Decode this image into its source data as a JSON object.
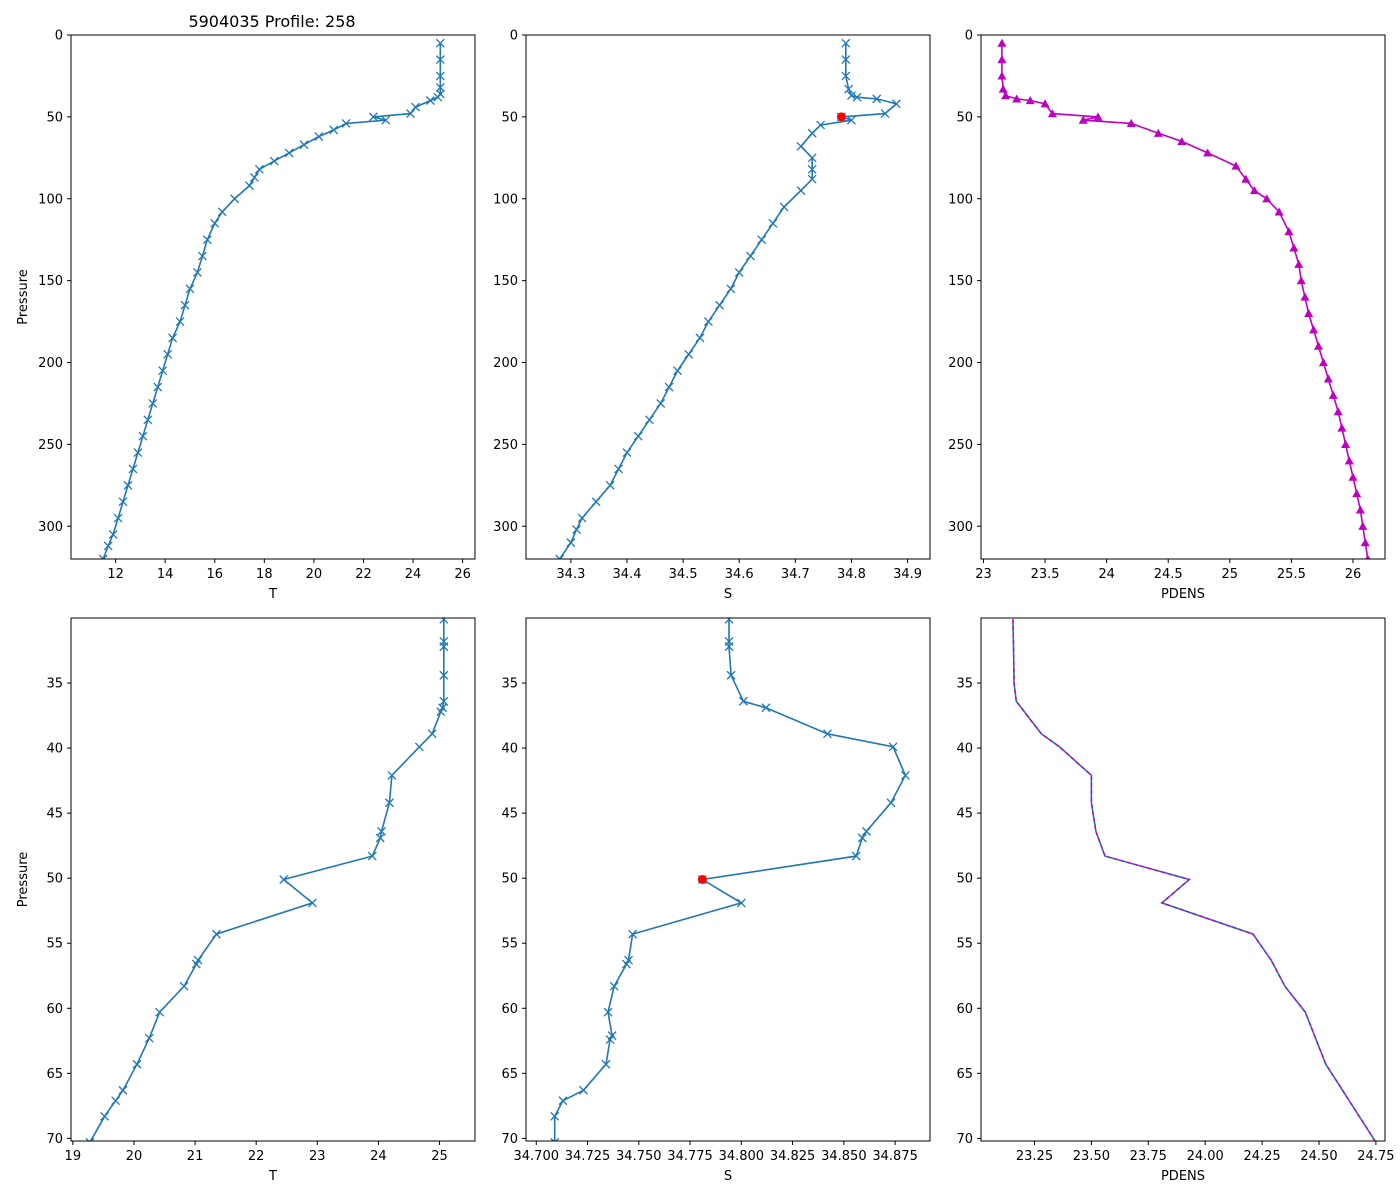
{
  "figure_title": "5904035 Profile: 258",
  "colors": {
    "line": "#1f77b4",
    "pdens": "#c000c0",
    "highlight": "#ff0000"
  },
  "chart_data": [
    {
      "id": "top-T",
      "type": "line",
      "xlabel": "T",
      "ylabel": "Pressure",
      "xlim": [
        10.2,
        26.5
      ],
      "ylim": [
        320,
        0
      ],
      "xticks": [
        12,
        14,
        16,
        18,
        20,
        22,
        24,
        26
      ],
      "yticks": [
        0,
        50,
        100,
        150,
        200,
        250,
        300
      ],
      "marker": "x",
      "color": "#1f77b4",
      "series": [
        {
          "name": "T",
          "x": [
            25.1,
            25.1,
            25.1,
            25.1,
            25.1,
            25.0,
            24.7,
            24.1,
            23.9,
            22.4,
            22.9,
            21.3,
            20.8,
            20.2,
            19.6,
            19.0,
            18.4,
            17.8,
            17.6,
            17.4,
            16.8,
            16.3,
            16.0,
            15.7,
            15.5,
            15.3,
            15.0,
            14.8,
            14.6,
            14.3,
            14.1,
            13.9,
            13.7,
            13.5,
            13.3,
            13.1,
            12.9,
            12.7,
            12.5,
            12.3,
            12.1,
            11.9,
            11.7,
            11.5
          ],
          "y": [
            5,
            15,
            25,
            32,
            36,
            38,
            40,
            44,
            48,
            50,
            52,
            54,
            58,
            62,
            67,
            72,
            77,
            82,
            87,
            92,
            100,
            108,
            115,
            125,
            135,
            145,
            155,
            165,
            175,
            185,
            195,
            205,
            215,
            225,
            235,
            245,
            255,
            265,
            275,
            285,
            295,
            305,
            312,
            320
          ]
        }
      ]
    },
    {
      "id": "top-S",
      "type": "line",
      "xlabel": "S",
      "ylabel": "",
      "xlim": [
        34.22,
        34.94
      ],
      "ylim": [
        320,
        0
      ],
      "xticks": [
        34.3,
        34.4,
        34.5,
        34.6,
        34.7,
        34.8,
        34.9
      ],
      "yticks": [
        0,
        50,
        100,
        150,
        200,
        250,
        300
      ],
      "marker": "x",
      "color": "#1f77b4",
      "highlight": {
        "x": 34.782,
        "y": 50
      },
      "series": [
        {
          "name": "S",
          "x": [
            34.79,
            34.79,
            34.79,
            34.795,
            34.8,
            34.81,
            34.845,
            34.88,
            34.86,
            34.782,
            34.8,
            34.745,
            34.73,
            34.71,
            34.73,
            34.73,
            34.73,
            34.71,
            34.68,
            34.66,
            34.64,
            34.62,
            34.6,
            34.585,
            34.565,
            34.545,
            34.53,
            34.51,
            34.49,
            34.475,
            34.46,
            34.44,
            34.42,
            34.4,
            34.385,
            34.37,
            34.345,
            34.32,
            34.31,
            34.3,
            34.28
          ],
          "y": [
            5,
            15,
            25,
            33,
            37,
            38,
            39,
            42,
            48,
            50,
            52,
            55,
            60,
            68,
            75,
            82,
            88,
            95,
            105,
            115,
            125,
            135,
            145,
            155,
            165,
            175,
            185,
            195,
            205,
            215,
            225,
            235,
            245,
            255,
            265,
            275,
            285,
            295,
            302,
            310,
            320
          ]
        }
      ]
    },
    {
      "id": "top-PDENS",
      "type": "line",
      "xlabel": "PDENS",
      "ylabel": "",
      "xlim": [
        22.98,
        26.26
      ],
      "ylim": [
        320,
        0
      ],
      "xticks": [
        23.0,
        23.5,
        24.0,
        24.5,
        25.0,
        25.5,
        26.0
      ],
      "ytick_labels": [
        "0",
        "50",
        "100",
        "150",
        "200",
        "250",
        "300"
      ],
      "yticks": [
        0,
        50,
        100,
        150,
        200,
        250,
        300
      ],
      "marker": "triangle",
      "color": "#c000c0",
      "series": [
        {
          "name": "PDENS",
          "x": [
            23.15,
            23.15,
            23.15,
            23.16,
            23.18,
            23.27,
            23.38,
            23.5,
            23.56,
            23.93,
            23.81,
            24.2,
            24.42,
            24.61,
            24.82,
            25.05,
            25.13,
            25.2,
            25.3,
            25.4,
            25.48,
            25.52,
            25.56,
            25.58,
            25.61,
            25.64,
            25.68,
            25.72,
            25.76,
            25.8,
            25.84,
            25.88,
            25.91,
            25.94,
            25.97,
            26.0,
            26.03,
            26.06,
            26.08,
            26.1,
            26.12
          ],
          "y": [
            5,
            15,
            25,
            33,
            37,
            39,
            40,
            42,
            48,
            50,
            52,
            54,
            60,
            65,
            72,
            80,
            88,
            95,
            100,
            108,
            120,
            130,
            140,
            150,
            160,
            170,
            180,
            190,
            200,
            210,
            220,
            230,
            240,
            250,
            260,
            270,
            280,
            290,
            300,
            310,
            320
          ]
        }
      ]
    },
    {
      "id": "bottom-T",
      "type": "line",
      "xlabel": "T",
      "ylabel": "Pressure",
      "xlim": [
        18.97,
        25.58
      ],
      "ylim": [
        70.2,
        30.0
      ],
      "xticks": [
        19,
        20,
        21,
        22,
        23,
        24,
        25
      ],
      "yticks": [
        35,
        40,
        45,
        50,
        55,
        60,
        65,
        70
      ],
      "marker": "x",
      "color": "#1f77b4",
      "series": [
        {
          "name": "T",
          "x": [
            25.07,
            25.07,
            25.07,
            25.07,
            25.07,
            25.05,
            25.02,
            24.88,
            24.67,
            24.22,
            24.18,
            24.05,
            24.03,
            23.9,
            22.45,
            22.92,
            21.35,
            21.05,
            21.02,
            20.82,
            20.42,
            20.25,
            20.05,
            19.82,
            19.7,
            19.52,
            19.28
          ],
          "y": [
            30.1,
            31.8,
            32.2,
            34.4,
            36.4,
            36.9,
            37.2,
            38.9,
            39.9,
            42.1,
            44.2,
            46.4,
            46.9,
            48.3,
            50.1,
            51.9,
            54.3,
            56.3,
            56.6,
            58.3,
            60.3,
            62.3,
            64.3,
            66.3,
            67.1,
            68.3,
            70.3
          ]
        }
      ]
    },
    {
      "id": "bottom-S",
      "type": "line",
      "xlabel": "S",
      "ylabel": "",
      "xlim": [
        34.695,
        34.892
      ],
      "ylim": [
        70.2,
        30.0
      ],
      "xticks": [
        34.7,
        34.725,
        34.75,
        34.775,
        34.8,
        34.825,
        34.85,
        34.875
      ],
      "xtick_labels": [
        "34.700",
        "34.725",
        "34.750",
        "34.775",
        "34.800",
        "34.825",
        "34.850",
        "34.875"
      ],
      "yticks": [
        35,
        40,
        45,
        50,
        55,
        60,
        65,
        70
      ],
      "marker": "x",
      "color": "#1f77b4",
      "highlight": {
        "x": 34.781,
        "y": 50.1
      },
      "series": [
        {
          "name": "S",
          "x": [
            34.794,
            34.794,
            34.794,
            34.795,
            34.801,
            34.812,
            34.842,
            34.874,
            34.88,
            34.873,
            34.861,
            34.859,
            34.856,
            34.781,
            34.8,
            34.747,
            34.745,
            34.744,
            34.738,
            34.735,
            34.737,
            34.736,
            34.734,
            34.723,
            34.713,
            34.709,
            34.709
          ],
          "y": [
            30.1,
            31.8,
            32.2,
            34.4,
            36.4,
            36.9,
            38.9,
            39.9,
            42.1,
            44.2,
            46.4,
            46.9,
            48.3,
            50.1,
            51.9,
            54.3,
            56.3,
            56.6,
            58.3,
            60.3,
            62.1,
            62.4,
            64.3,
            66.3,
            67.1,
            68.3,
            70.3
          ]
        }
      ]
    },
    {
      "id": "bottom-PDENS",
      "type": "line",
      "xlabel": "PDENS",
      "ylabel": "",
      "xlim": [
        23.015,
        24.79
      ],
      "ylim": [
        70.2,
        30.0
      ],
      "xticks": [
        23.25,
        23.5,
        23.75,
        24.0,
        24.25,
        24.5,
        24.75
      ],
      "xtick_labels": [
        "23.25",
        "23.50",
        "23.75",
        "24.00",
        "24.25",
        "24.50",
        "24.75"
      ],
      "yticks": [
        35,
        40,
        45,
        50,
        55,
        60,
        65,
        70
      ],
      "marker": "none",
      "color": "#1f77b4",
      "dash_color": "#c000c0",
      "series": [
        {
          "name": "PDENS",
          "x": [
            23.155,
            23.158,
            23.16,
            23.16,
            23.17,
            23.28,
            23.36,
            23.5,
            23.5,
            23.52,
            23.56,
            23.93,
            23.81,
            24.21,
            24.29,
            24.35,
            24.44,
            24.53,
            24.75
          ],
          "y": [
            30.1,
            32.2,
            34.4,
            35.0,
            36.4,
            38.9,
            39.9,
            42.1,
            44.2,
            46.4,
            48.3,
            50.1,
            51.9,
            54.3,
            56.3,
            58.3,
            60.3,
            64.3,
            70.3
          ]
        }
      ]
    }
  ]
}
